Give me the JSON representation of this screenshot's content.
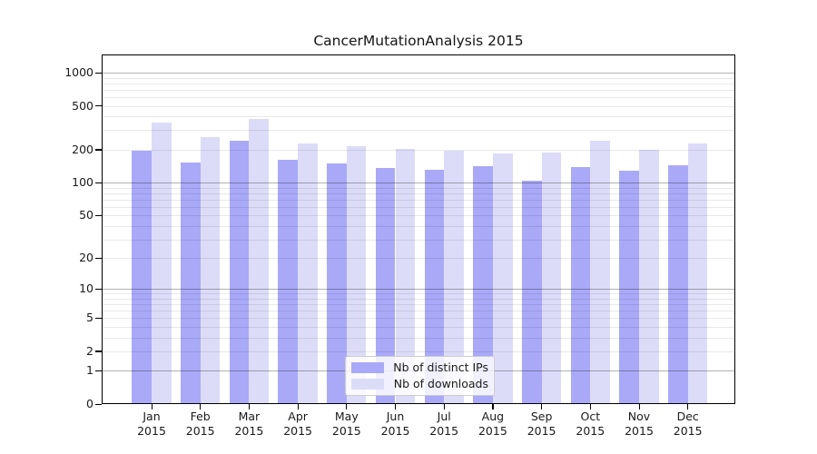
{
  "title": "CancerMutationAnalysis 2015",
  "chart_data": {
    "type": "bar",
    "title": "CancerMutationAnalysis 2015",
    "categories": [
      "Jan",
      "Feb",
      "Mar",
      "Apr",
      "May",
      "Jun",
      "Jul",
      "Aug",
      "Sep",
      "Oct",
      "Nov",
      "Dec"
    ],
    "x_year_label": "2015",
    "series": [
      {
        "name": "Nb of distinct IPs",
        "color": "#a9a9f8",
        "values": [
          197,
          152,
          240,
          161,
          150,
          137,
          131,
          141,
          105,
          138,
          128,
          143
        ]
      },
      {
        "name": "Nb of downloads",
        "color": "#dcdcf8",
        "values": [
          350,
          260,
          380,
          226,
          214,
          205,
          194,
          184,
          190,
          242,
          201,
          227
        ]
      }
    ],
    "y_axis": {
      "scale": "log10(1+value)",
      "tick_values": [
        0,
        1,
        2,
        5,
        10,
        20,
        50,
        100,
        200,
        500,
        1000
      ],
      "tick_labels": [
        "0",
        "1",
        "2",
        "5",
        "10",
        "20",
        "50",
        "100",
        "200",
        "500",
        "1000"
      ],
      "major_gridline_values": [
        1,
        10,
        100,
        1000
      ],
      "range": [
        0,
        1000
      ]
    },
    "grid": true,
    "legend_position": "bottom-center-inside"
  },
  "colors": {
    "bar_distinct_ips": "#a9a9f8",
    "bar_downloads": "#dcdcf8",
    "major_grid": "#b3b3b3",
    "minor_grid": "#e8e8e8",
    "spine": "#000000",
    "text": "#1a1a1a",
    "legend_border": "#cccccc"
  }
}
